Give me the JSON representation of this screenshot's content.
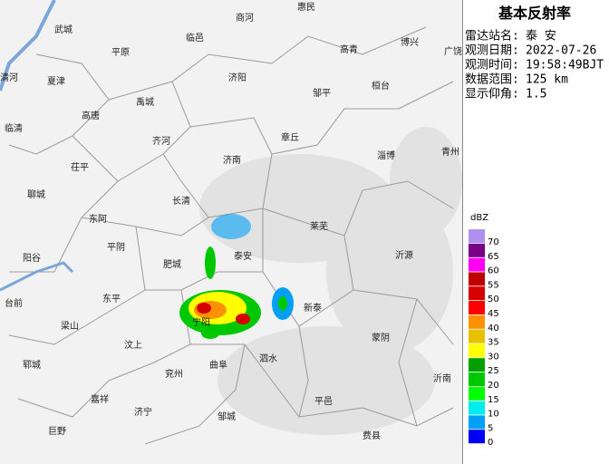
{
  "panel": {
    "title": "基本反射率",
    "rows": [
      {
        "label": "雷达站名:",
        "value": "泰 安"
      },
      {
        "label": "观测日期:",
        "value": "2022-07-26"
      },
      {
        "label": "观测时间:",
        "value": "19:58:49BJT"
      },
      {
        "label": "数据范围:",
        "value": "125 km"
      },
      {
        "label": "显示仰角:",
        "value": "1.5"
      }
    ]
  },
  "legend": {
    "unit": "dBZ",
    "items": [
      {
        "value": 70,
        "color": "#ad90f0"
      },
      {
        "value": 65,
        "color": "#780084"
      },
      {
        "value": 60,
        "color": "#ff00f0"
      },
      {
        "value": 55,
        "color": "#c00000"
      },
      {
        "value": 50,
        "color": "#d60000"
      },
      {
        "value": 45,
        "color": "#ff0000"
      },
      {
        "value": 40,
        "color": "#ff9000"
      },
      {
        "value": 35,
        "color": "#e7c000"
      },
      {
        "value": 30,
        "color": "#ffff00"
      },
      {
        "value": 25,
        "color": "#00a000"
      },
      {
        "value": 20,
        "color": "#00c800"
      },
      {
        "value": 15,
        "color": "#00ff00"
      },
      {
        "value": 10,
        "color": "#00ecec"
      },
      {
        "value": 5,
        "color": "#01a0f6"
      },
      {
        "value": 0,
        "color": "#0000f6"
      }
    ]
  },
  "map": {
    "places": [
      "武城",
      "商河",
      "惠民",
      "平原",
      "临邑",
      "高青",
      "博兴",
      "广饶",
      "清河",
      "夏津",
      "济阳",
      "邹平",
      "桓台",
      "禹城",
      "高唐",
      "临清",
      "齐河",
      "章丘",
      "淄博",
      "青州",
      "茌平",
      "济南",
      "聊城",
      "长清",
      "东阿",
      "莱芜",
      "平阴",
      "阳谷",
      "肥城",
      "泰安",
      "沂源",
      "东平",
      "新泰",
      "台前",
      "梁山",
      "汶上",
      "蒙阴",
      "郓城",
      "宁阳",
      "兖州",
      "曲阜",
      "泗水",
      "沂南",
      "嘉祥",
      "济宁",
      "邹城",
      "平邑",
      "巨野",
      "费县"
    ]
  }
}
